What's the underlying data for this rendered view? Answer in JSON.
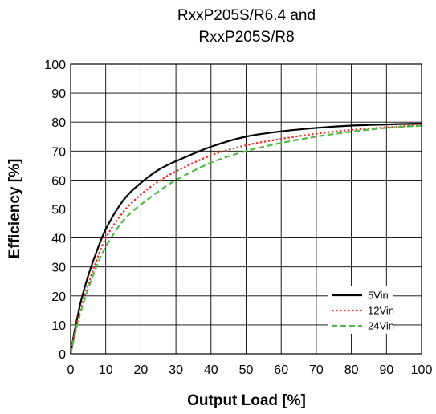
{
  "chart_data": {
    "type": "line",
    "title_lines": [
      "RxxP205S/R6.4 and",
      "RxxP205S/R8"
    ],
    "xlabel": "Output Load [%]",
    "ylabel": "Efficiency [%]",
    "xlim": [
      0,
      100
    ],
    "ylim": [
      0,
      100
    ],
    "xticks": [
      0,
      10,
      20,
      30,
      40,
      50,
      60,
      70,
      80,
      90,
      100
    ],
    "yticks": [
      0,
      10,
      20,
      30,
      40,
      50,
      60,
      70,
      80,
      90,
      100
    ],
    "grid": true,
    "legend_position": "bottom-right",
    "x": [
      0,
      1,
      2,
      3,
      5,
      7,
      10,
      15,
      20,
      25,
      30,
      40,
      50,
      60,
      70,
      80,
      90,
      100
    ],
    "series": [
      {
        "name": "5Vin",
        "color": "#000000",
        "dash": "solid",
        "values": [
          0,
          7,
          13,
          18.5,
          27,
          34,
          43,
          53,
          59,
          63.5,
          66.5,
          71.5,
          75,
          76.8,
          78,
          78.8,
          79.2,
          79.5
        ]
      },
      {
        "name": "12Vin",
        "color": "#e8332a",
        "dash": "dotted",
        "values": [
          0,
          6,
          11.5,
          16,
          24,
          31,
          40,
          49,
          55,
          59.5,
          63,
          68.5,
          72,
          74.2,
          76,
          77.3,
          78.2,
          79
        ]
      },
      {
        "name": "24Vin",
        "color": "#52b848",
        "dash": "dashed",
        "values": [
          0,
          5.5,
          10.5,
          15,
          22.5,
          29,
          37,
          46,
          51.5,
          56,
          60,
          66,
          70,
          72.8,
          75,
          76.7,
          78,
          78.8
        ]
      }
    ]
  }
}
